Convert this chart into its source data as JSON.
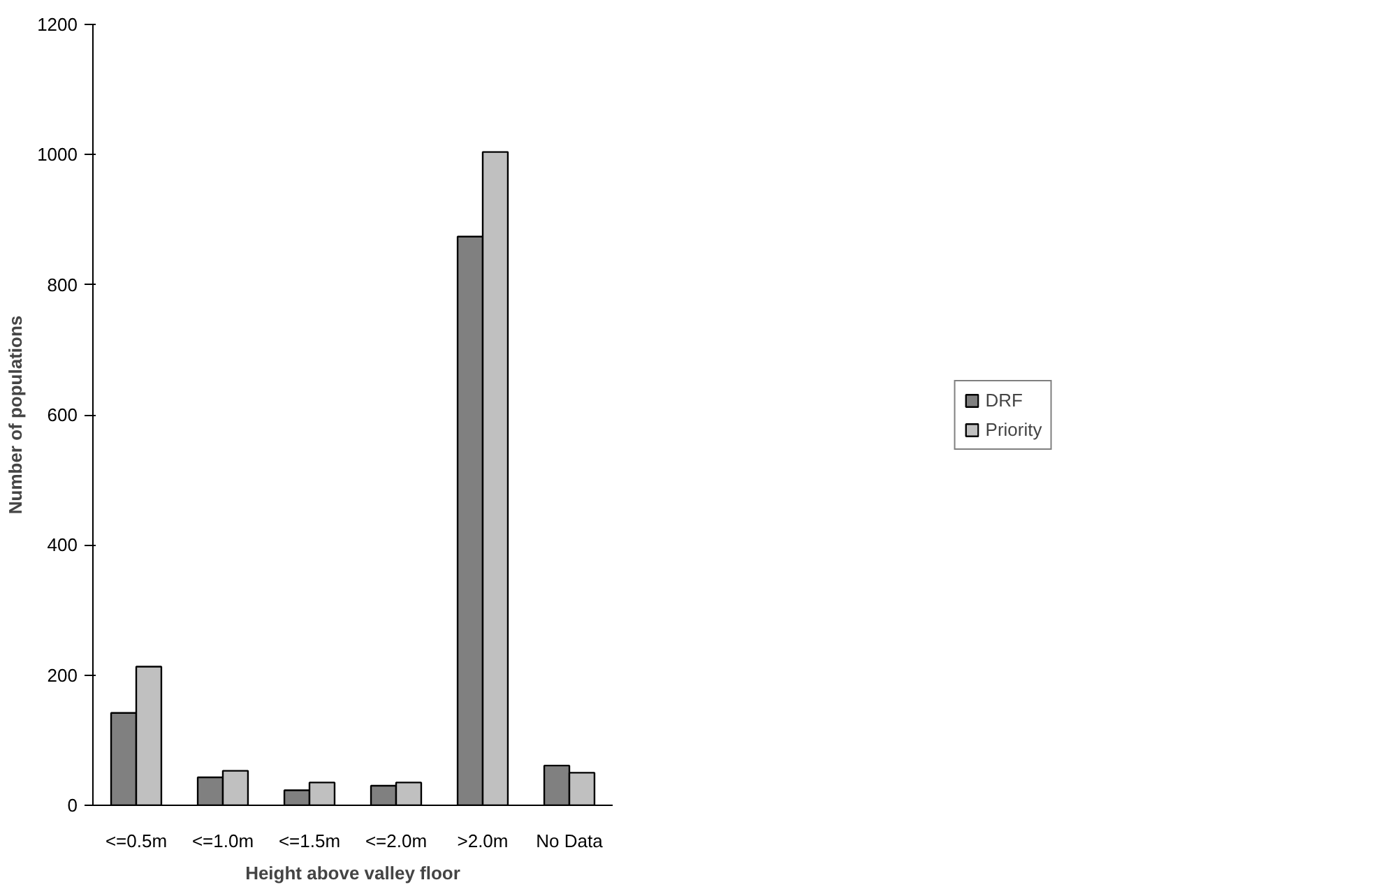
{
  "chart_data": {
    "type": "bar",
    "xlabel": "Height above valley floor",
    "ylabel": "Number of populations",
    "categories": [
      "<=0.5m",
      "<=1.0m",
      "<=1.5m",
      "<=2.0m",
      ">2.0m",
      "No Data"
    ],
    "series": [
      {
        "name": "DRF",
        "color": "#808080",
        "values": [
          142,
          43,
          23,
          30,
          874,
          61
        ]
      },
      {
        "name": "Priority",
        "color": "#c0c0c0",
        "values": [
          213,
          53,
          35,
          35,
          1004,
          50
        ]
      }
    ],
    "ylim": [
      0,
      1200
    ],
    "yticks": [
      0,
      200,
      400,
      600,
      800,
      1000,
      1200
    ],
    "grid": false,
    "legend": "right"
  }
}
